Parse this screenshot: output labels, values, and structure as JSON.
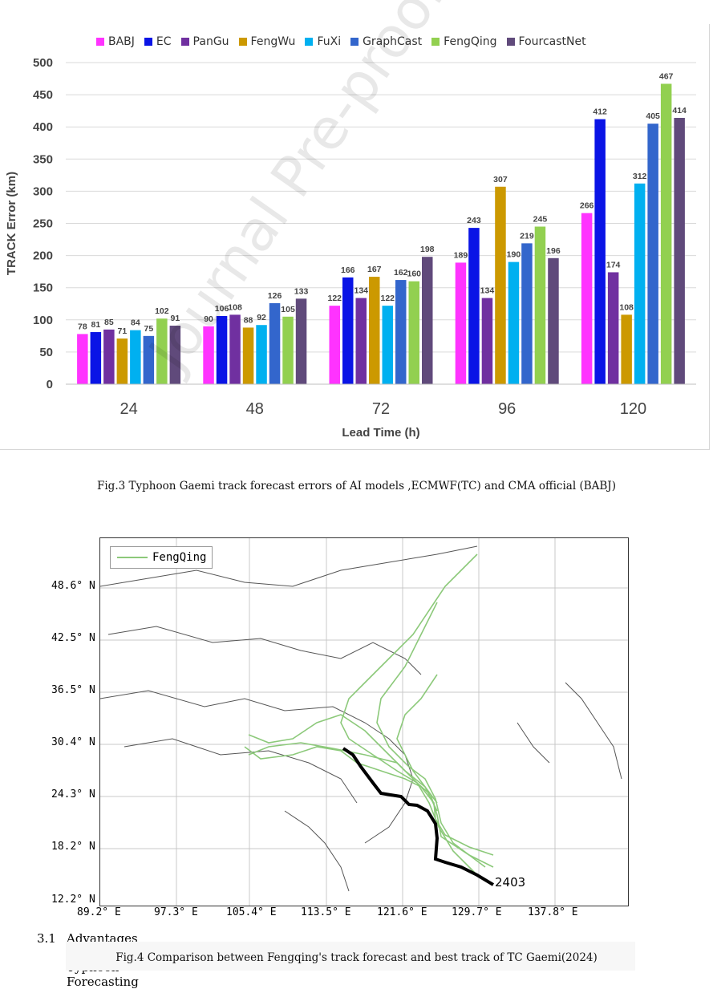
{
  "chart_data": {
    "type": "bar",
    "categories": [
      "24",
      "48",
      "72",
      "96",
      "120"
    ],
    "xlabel": "Lead Time (h)",
    "ylabel": "TRACK Error (km)",
    "ylim": [
      0,
      500
    ],
    "yticks": [
      "0",
      "50",
      "100",
      "150",
      "200",
      "250",
      "300",
      "350",
      "400",
      "450",
      "500"
    ],
    "legend_position": "top",
    "series": [
      {
        "name": "BABJ",
        "color": "#ff33ff",
        "values": [
          78,
          90,
          122,
          189,
          266
        ]
      },
      {
        "name": "EC",
        "color": "#0a14e6",
        "values": [
          81,
          106,
          166,
          243,
          412
        ]
      },
      {
        "name": "PanGu",
        "color": "#7030a0",
        "values": [
          85,
          108,
          134,
          134,
          174
        ]
      },
      {
        "name": "FengWu",
        "color": "#cc9900",
        "values": [
          71,
          88,
          167,
          307,
          108
        ]
      },
      {
        "name": "FuXi",
        "color": "#00b0f0",
        "values": [
          84,
          92,
          122,
          190,
          312
        ]
      },
      {
        "name": "GraphCast",
        "color": "#3366cc",
        "values": [
          75,
          126,
          162,
          219,
          405
        ]
      },
      {
        "name": "FengQing",
        "color": "#92d050",
        "values": [
          102,
          105,
          160,
          245,
          467
        ]
      },
      {
        "name": "FourcastNet",
        "color": "#604a7b",
        "values": [
          91,
          133,
          198,
          196,
          414
        ]
      }
    ]
  },
  "fig3_caption": "Fig.3 Typhoon Gaemi track forecast errors of AI models ,ECMWF(TC) and CMA official (BABJ)",
  "watermark": "Journal Pre-proof",
  "map": {
    "legend_label": "FengQing",
    "storm_label": "2403",
    "lat_labels": [
      "48.6° N",
      "42.5° N",
      "36.5° N",
      "30.4° N",
      "24.3° N",
      "18.2° N",
      "12.2° N"
    ],
    "lon_labels": [
      "89.2° E",
      "97.3° E",
      "105.4° E",
      "113.5° E",
      "121.6° E",
      "129.7° E",
      "137.8° E"
    ]
  },
  "section": {
    "number": "3.1",
    "title": "Advantages of AI in Typhoon Forecasting"
  },
  "fig4_caption": "Fig.4  Comparison between Fengqing's track forecast and best track of TC Gaemi(2024)"
}
